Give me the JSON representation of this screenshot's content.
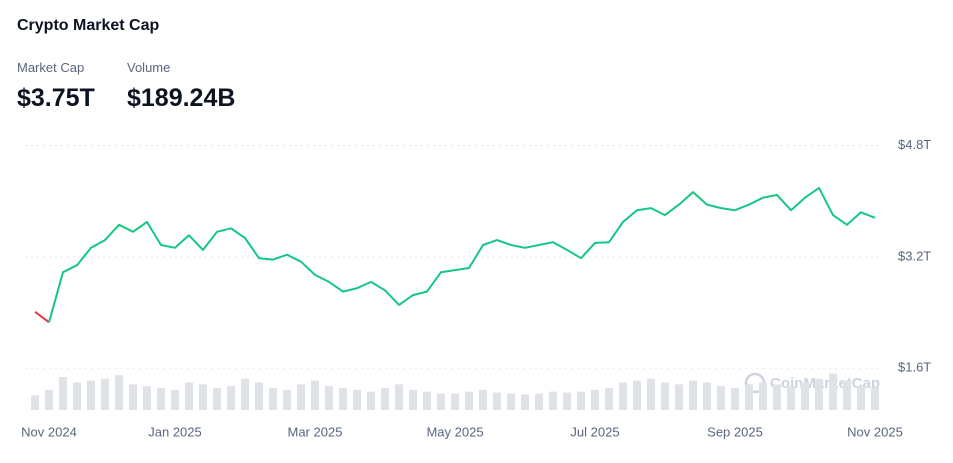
{
  "header": {
    "title": "Crypto Market Cap",
    "stats": [
      {
        "label": "Market Cap",
        "value": "$3.75T"
      },
      {
        "label": "Volume",
        "value": "$189.24B"
      }
    ],
    "watermark": "CoinMarketCap"
  },
  "chart_data": {
    "type": "line",
    "categories": [
      null,
      "Nov 2024",
      null,
      null,
      null,
      null,
      null,
      null,
      null,
      null,
      "Jan 2025",
      null,
      null,
      null,
      null,
      null,
      null,
      null,
      null,
      null,
      "Mar 2025",
      null,
      null,
      null,
      null,
      null,
      null,
      null,
      null,
      null,
      "May 2025",
      null,
      null,
      null,
      null,
      null,
      null,
      null,
      null,
      null,
      "Jul 2025",
      null,
      null,
      null,
      null,
      null,
      null,
      null,
      null,
      null,
      "Sep 2025",
      null,
      null,
      null,
      null,
      null,
      null,
      null,
      null,
      null,
      "Nov 2025"
    ],
    "series": [
      {
        "color": "#16c784",
        "below_start_color": "#ea3943",
        "values": [
          2.41,
          2.26,
          2.98,
          3.08,
          3.33,
          3.44,
          3.66,
          3.56,
          3.7,
          3.37,
          3.33,
          3.51,
          3.3,
          3.56,
          3.61,
          3.47,
          3.18,
          3.16,
          3.23,
          3.13,
          2.94,
          2.84,
          2.7,
          2.75,
          2.84,
          2.72,
          2.51,
          2.65,
          2.7,
          2.98,
          3.01,
          3.04,
          3.37,
          3.44,
          3.37,
          3.33,
          3.37,
          3.41,
          3.3,
          3.18,
          3.4,
          3.41,
          3.7,
          3.87,
          3.9,
          3.8,
          3.95,
          4.13,
          3.95,
          3.9,
          3.87,
          3.95,
          4.05,
          4.09,
          3.87,
          4.05,
          4.19,
          3.8,
          3.66,
          3.84,
          3.76
        ]
      },
      {
        "type": "bar",
        "axis": "y2",
        "color": "#dfe2e7",
        "values": [
          80,
          110,
          180,
          150,
          160,
          170,
          190,
          140,
          130,
          120,
          110,
          150,
          140,
          120,
          130,
          170,
          150,
          120,
          110,
          140,
          160,
          130,
          120,
          110,
          100,
          120,
          140,
          110,
          100,
          90,
          90,
          100,
          110,
          95,
          90,
          85,
          90,
          100,
          95,
          100,
          110,
          120,
          150,
          160,
          170,
          150,
          140,
          160,
          150,
          130,
          120,
          140,
          150,
          140,
          130,
          150,
          170,
          200,
          160,
          130,
          120
        ]
      }
    ],
    "ylim": [
      1.0,
      4.95
    ],
    "yticks": [
      {
        "value": 1.6,
        "label": "$1.6T"
      },
      {
        "value": 3.2,
        "label": "$3.2T"
      },
      {
        "value": 4.8,
        "label": "$4.8T"
      }
    ],
    "y2lim": [
      0,
      1500
    ],
    "grid": true
  }
}
